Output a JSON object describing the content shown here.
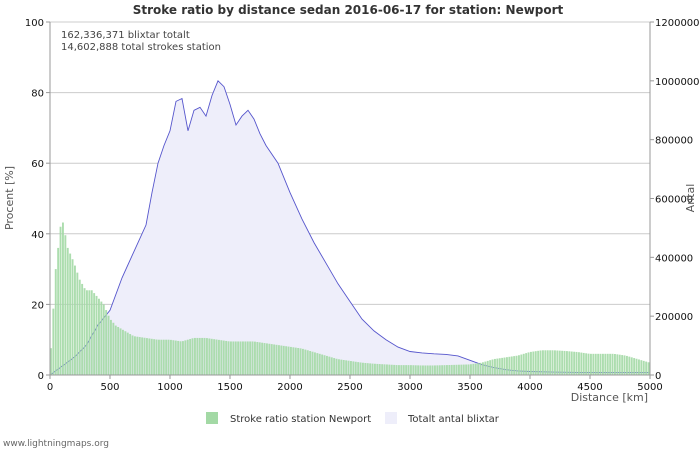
{
  "chart_data": {
    "type": "bar+area",
    "title": "Stroke ratio by distance sedan 2016-06-17 for station: Newport",
    "annotations": [
      "162,336,371 blixtar totalt",
      "14,602,888 total strokes station"
    ],
    "xlabel": "Distance   [km]",
    "ylabel_left": "Procent   [%]",
    "ylabel_right": "Antal",
    "xlim": [
      0,
      5000
    ],
    "ylim_left": [
      0,
      100
    ],
    "ylim_right": [
      0,
      1200000
    ],
    "x_ticks": [
      "0",
      "500",
      "1000",
      "1500",
      "2000",
      "2500",
      "3000",
      "3500",
      "4000",
      "4500",
      "5000"
    ],
    "y_left_ticks": [
      "0",
      "20",
      "40",
      "60",
      "80",
      "100"
    ],
    "y_right_ticks": [
      "0",
      "200000",
      "400000",
      "600000",
      "800000",
      "1000000",
      "1200000"
    ],
    "grid": true,
    "legend_position": "bottom",
    "series": [
      {
        "name": "Stroke ratio station Newport",
        "axis": "left",
        "kind": "bar",
        "color": "#a3d9a5",
        "x": [
          0,
          50,
          100,
          150,
          200,
          250,
          300,
          350,
          400,
          450,
          500,
          550,
          600,
          650,
          700,
          800,
          900,
          1000,
          1100,
          1200,
          1300,
          1400,
          1500,
          1600,
          1700,
          1800,
          1900,
          2000,
          2100,
          2200,
          2300,
          2400,
          2500,
          2600,
          2700,
          2800,
          2900,
          3000,
          3100,
          3200,
          3300,
          3400,
          3500,
          3600,
          3700,
          3800,
          3900,
          4000,
          4100,
          4200,
          4300,
          4400,
          4500,
          4600,
          4700,
          4800,
          4900,
          5000
        ],
        "values": [
          2,
          30,
          45,
          36,
          32,
          27,
          24,
          24,
          22,
          20,
          16,
          14,
          13,
          12,
          11,
          10.5,
          10,
          10,
          9.5,
          10.5,
          10.5,
          10,
          9.5,
          9.5,
          9.5,
          9,
          8.5,
          8,
          7.5,
          6.5,
          5.5,
          4.5,
          4,
          3.5,
          3.2,
          3,
          2.8,
          2.8,
          2.7,
          2.7,
          2.8,
          2.9,
          3,
          3.5,
          4.5,
          5,
          5.5,
          6.5,
          7,
          7,
          6.8,
          6.5,
          6,
          6,
          6,
          5.5,
          4.5,
          3.5
        ]
      },
      {
        "name": "Totalt antal blixtar",
        "axis": "right",
        "kind": "area",
        "color": "#5555cc",
        "fill": "#eeeefa",
        "x": [
          0,
          100,
          200,
          300,
          400,
          500,
          600,
          700,
          800,
          850,
          900,
          950,
          1000,
          1050,
          1100,
          1150,
          1200,
          1250,
          1300,
          1350,
          1400,
          1450,
          1500,
          1550,
          1600,
          1650,
          1700,
          1750,
          1800,
          1900,
          2000,
          2100,
          2200,
          2300,
          2400,
          2500,
          2600,
          2700,
          2800,
          2900,
          3000,
          3100,
          3200,
          3300,
          3400,
          3500,
          3600,
          3700,
          3800,
          3900,
          4000,
          4200,
          4400,
          4600,
          4800,
          5000
        ],
        "values": [
          0,
          30000,
          60000,
          100000,
          170000,
          220000,
          330000,
          420000,
          510000,
          620000,
          720000,
          780000,
          830000,
          930000,
          940000,
          830000,
          900000,
          910000,
          880000,
          950000,
          1000000,
          980000,
          920000,
          850000,
          880000,
          900000,
          870000,
          820000,
          780000,
          720000,
          620000,
          530000,
          450000,
          380000,
          310000,
          250000,
          190000,
          150000,
          120000,
          95000,
          80000,
          75000,
          72000,
          70000,
          65000,
          50000,
          35000,
          25000,
          18000,
          14000,
          12000,
          10000,
          9000,
          8000,
          8000,
          8000
        ]
      }
    ]
  },
  "legend": [
    {
      "label": "Stroke ratio station Newport",
      "color": "#a3d9a5"
    },
    {
      "label": "Totalt antal blixtar",
      "color": "#eeeefa"
    }
  ],
  "footer": "www.lightningmaps.org"
}
